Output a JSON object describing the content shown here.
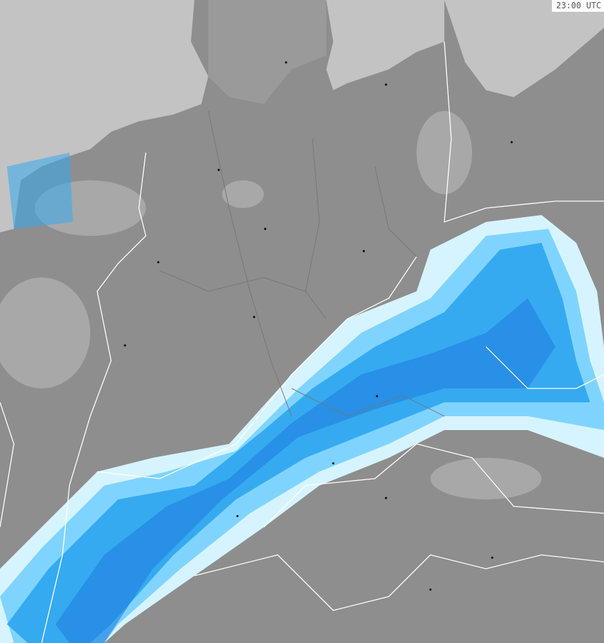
{
  "timestamp": "23:00 UTC",
  "colors": {
    "land": "#8e8e8e",
    "sea": "#c3c3c3",
    "clutter": "#a8a8a8",
    "precip_light": "#d6f4ff",
    "precip_low": "#7fd4ff",
    "precip_mid": "#35aaf0",
    "precip_high": "#1f7ee0",
    "borders": "#ffffff",
    "regional_borders": "#7a6a6a"
  },
  "icons": [
    "radar-precipitation-overlay",
    "city-dot"
  ]
}
